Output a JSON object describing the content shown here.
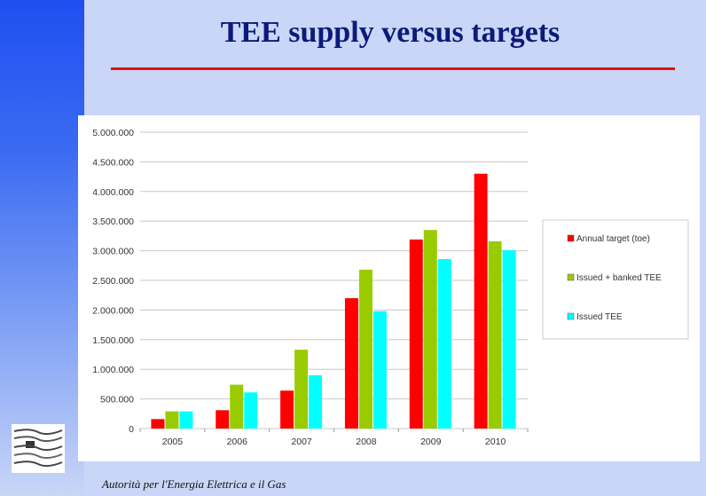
{
  "slide": {
    "title": "TEE supply versus targets",
    "footer": "Autorità per l'Energia Elettrica e il Gas"
  },
  "colors": {
    "title": "#0c1a7a",
    "rule": "#e3120b",
    "background": "#c9d6f7"
  },
  "chart_data": {
    "type": "bar",
    "title": "",
    "xlabel": "",
    "ylabel": "",
    "categories": [
      "2005",
      "2006",
      "2007",
      "2008",
      "2009",
      "2010"
    ],
    "ylim": [
      0,
      5000000
    ],
    "yticks": [
      0,
      500000,
      1000000,
      1500000,
      2000000,
      2500000,
      3000000,
      3500000,
      4000000,
      4500000,
      5000000
    ],
    "ytick_labels": [
      "0",
      "500.000",
      "1.000.000",
      "1.500.000",
      "2.000.000",
      "2.500.000",
      "3.000.000",
      "3.500.000",
      "4.000.000",
      "4.500.000",
      "5.000.000"
    ],
    "grid": true,
    "legend_position": "right",
    "series": [
      {
        "name": "Annual target (toe)",
        "color": "#ff0000",
        "values": [
          160000,
          310000,
          640000,
          2200000,
          3190000,
          4300000
        ]
      },
      {
        "name": "Issued + banked TEE",
        "color": "#99cc00",
        "values": [
          290000,
          740000,
          1330000,
          2680000,
          3350000,
          3160000
        ]
      },
      {
        "name": "Issued TEE",
        "color": "#00ffff",
        "values": [
          290000,
          610000,
          900000,
          1980000,
          2860000,
          3010000
        ]
      }
    ]
  }
}
